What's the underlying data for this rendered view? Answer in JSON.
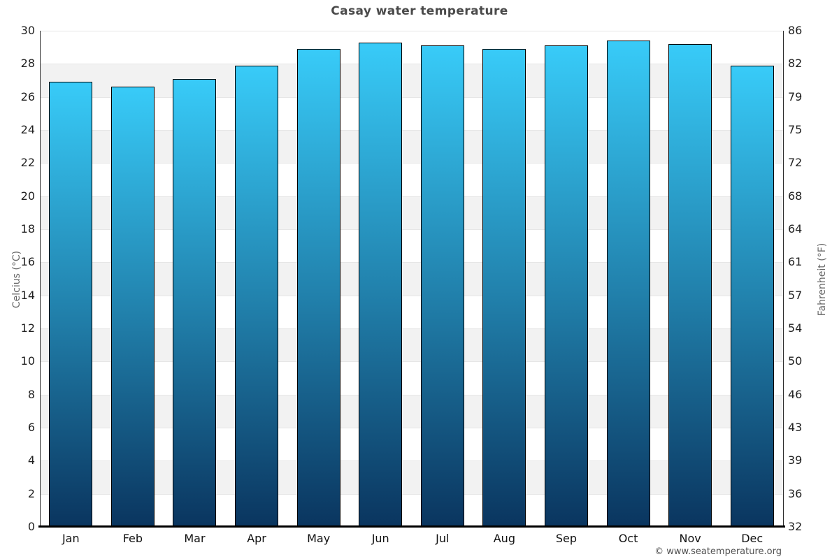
{
  "chart_data": {
    "type": "bar",
    "title": "Casay water temperature",
    "categories": [
      "Jan",
      "Feb",
      "Mar",
      "Apr",
      "May",
      "Jun",
      "Jul",
      "Aug",
      "Sep",
      "Oct",
      "Nov",
      "Dec"
    ],
    "values": [
      26.9,
      26.6,
      27.1,
      27.9,
      28.9,
      29.3,
      29.1,
      28.9,
      29.1,
      29.4,
      29.2,
      27.9
    ],
    "unit": "°C",
    "ylabel_left": "Celcius (°C)",
    "ylabel_right": "Fahrenheit (°F)",
    "ylim": [
      0,
      30
    ],
    "yticks_celsius": [
      30,
      28,
      26,
      24,
      22,
      20,
      18,
      16,
      14,
      12,
      10,
      8,
      6,
      4,
      2,
      0
    ],
    "yticks_fahrenheit": [
      86,
      82,
      79,
      75,
      72,
      68,
      64,
      61,
      57,
      54,
      50,
      46,
      43,
      39,
      36,
      32
    ],
    "grid": "alternating-bands",
    "legend": "none",
    "footer": "© www.seatemperature.org",
    "colors": {
      "bar_gradient_top": "#38cbf8",
      "bar_gradient_bottom": "#0a355f",
      "bar_border": "#000000",
      "band_light": "#ffffff",
      "band_dark": "#f2f2f2",
      "gridline": "#e6e6e6",
      "axis_line": "#2b2b2b",
      "baseline": "#000000",
      "title_color": "#4a4a4a",
      "tick_color": "#222222",
      "axis_label_color": "#666666",
      "footer_color": "#515151",
      "background": "#ffffff"
    }
  }
}
